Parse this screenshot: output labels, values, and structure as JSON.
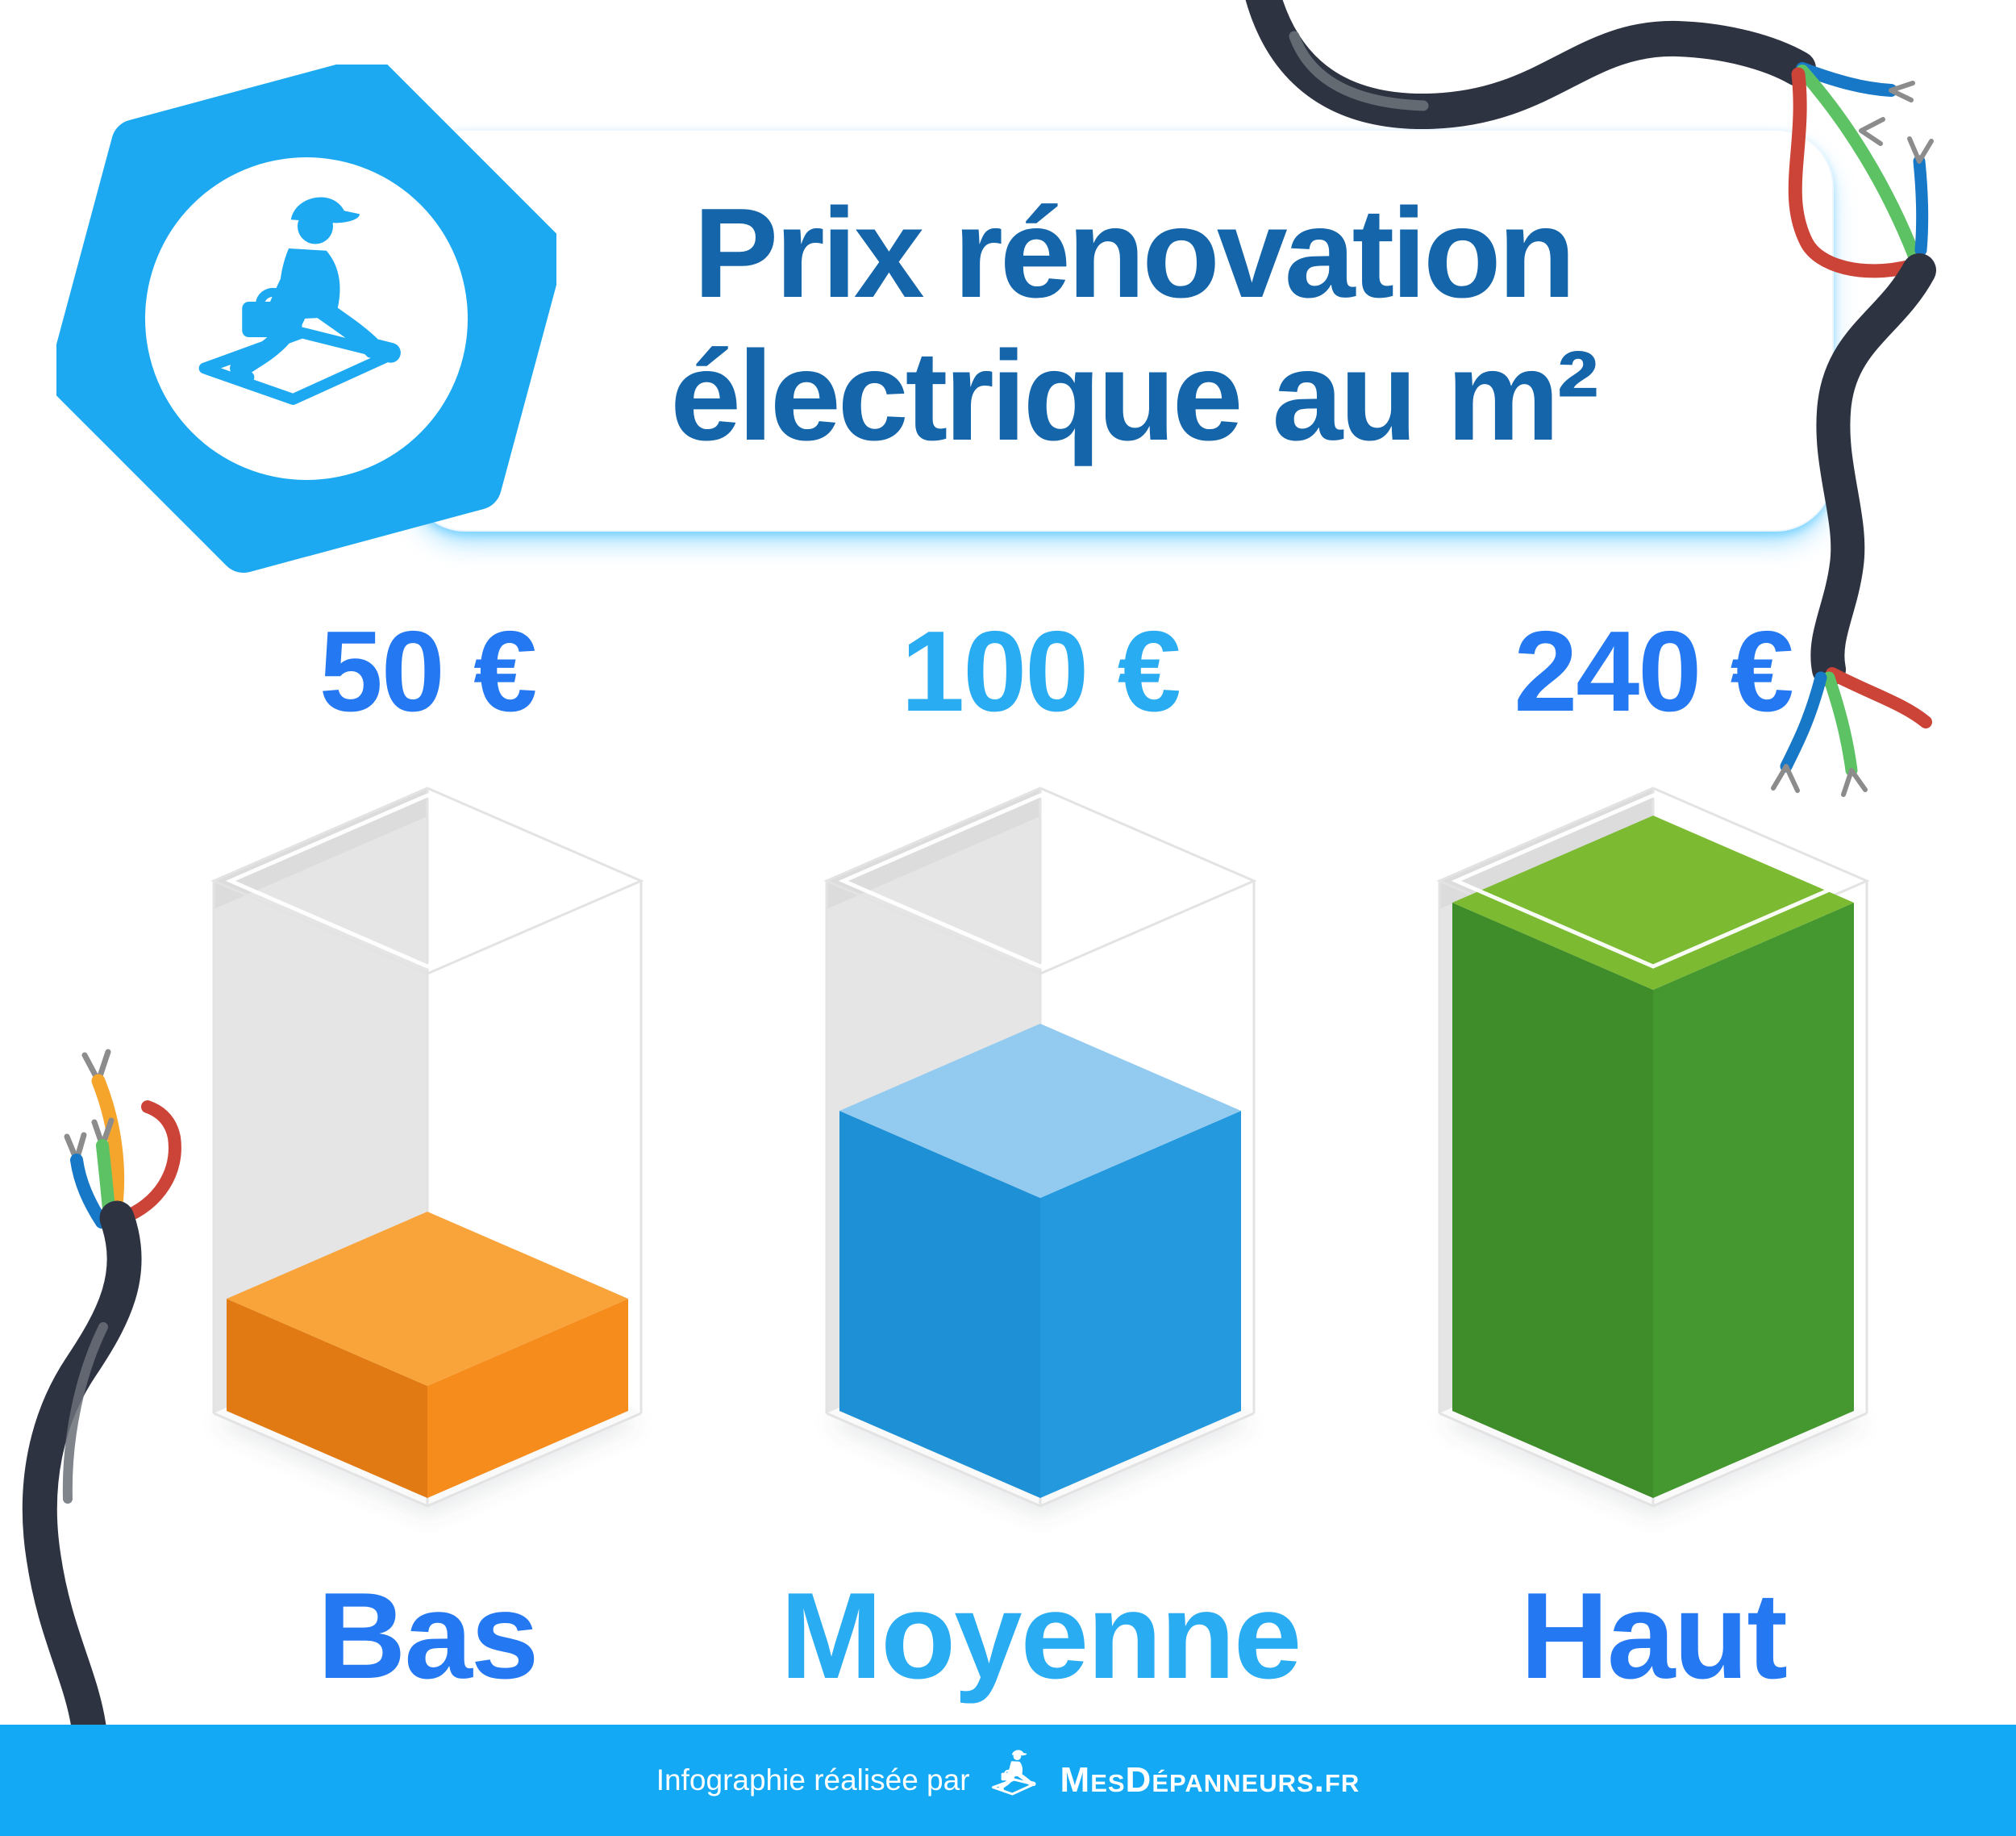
{
  "header": {
    "title_line1": "Prix rénovation",
    "title_line2": "électrique au m²",
    "title_color": "#1565AB",
    "card_bg": "#ffffff",
    "logo": {
      "name": "mesdepanneurs-hexagon-logo",
      "hex_color": "#1CA9F2"
    }
  },
  "chart_data": {
    "type": "bar",
    "title": "Prix rénovation électrique au m²",
    "categories": [
      "Bas",
      "Moyenne",
      "Haut"
    ],
    "values": [
      50,
      100,
      240
    ],
    "unit": "€",
    "price_labels": [
      "50 €",
      "100 €",
      "240 €"
    ],
    "fill_fractions": [
      0.22,
      0.59,
      1.0
    ],
    "ylim": [
      0,
      240
    ],
    "legend": "none",
    "grid": "off",
    "bar_colors": [
      {
        "top": "#F9A43B",
        "left": "#E17A12",
        "right": "#F68C1C"
      },
      {
        "top": "#93CBF0",
        "left": "#1D90D6",
        "right": "#2499DE"
      },
      {
        "top": "#7BBA31",
        "left": "#3E8D2A",
        "right": "#45982F"
      }
    ],
    "label_colors": [
      "#2478F2",
      "#29ACF2",
      "#2478F2"
    ],
    "container_style": {
      "wall": "#E6E5E6",
      "floor": "#FAFAFA",
      "outline": "#E3E3E3",
      "rim": "#FFFFFF"
    }
  },
  "footer": {
    "bg": "#14A9F5",
    "text_color": "#ffffff",
    "credit_text": "Infographie réalisée par",
    "brand": "MesDépanneurs.fr",
    "brand_icon": "mesdepanneurs-worker-icon"
  },
  "decor": {
    "top_right_icon": "stripped-cable-icon",
    "bottom_left_icon": "stripped-cable-icon",
    "cable_color": "#2E3342",
    "cable_core_color": "#6A7078",
    "strand_colors": {
      "red": "#CC4437",
      "green": "#5CC264",
      "blue": "#1878C8",
      "yellow": "#F5A52B",
      "frayed_tip": "#8C8C8C"
    }
  }
}
